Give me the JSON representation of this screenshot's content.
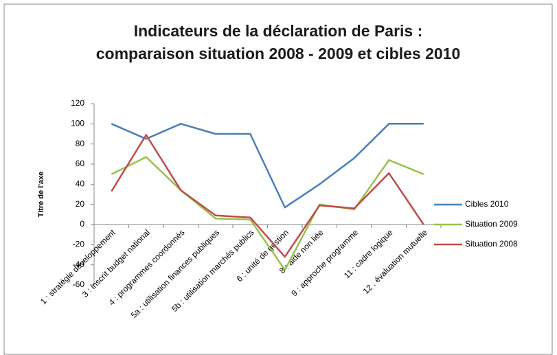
{
  "chart_data": {
    "type": "line",
    "title": [
      "Indicateurs de la déclaration de Paris :",
      "comparaison situation 2008 - 2009 et cibles 2010"
    ],
    "y_label": "Titre de l'axe",
    "categories": [
      "1 : stratégie développement",
      "3 : inscrit budget national",
      "4 : programmes coordonnés",
      "5a : utilisation finances publiques",
      "5b : utilisation marchés publics",
      "6 : unité de gestion",
      "8 : aide non liée",
      "9 : approche programme",
      "11 : cadre logique",
      "12 . évaluation mutuelle"
    ],
    "series": [
      {
        "name": "Cibles 2010",
        "color": "#4a7ebb",
        "values": [
          100,
          85,
          100,
          90,
          90,
          17,
          40,
          66,
          100,
          100
        ]
      },
      {
        "name": "Situation 2009",
        "color": "#98c14a",
        "values": [
          50,
          67,
          34,
          6,
          5,
          -45,
          20,
          15,
          64,
          50
        ]
      },
      {
        "name": "Situation 2008",
        "color": "#be4b48",
        "values": [
          33,
          89,
          34,
          9,
          7,
          -32,
          19,
          16,
          51,
          0
        ]
      }
    ],
    "ylim": [
      -60,
      120
    ],
    "yticks": [
      -60,
      -40,
      -20,
      0,
      20,
      40,
      60,
      80,
      100,
      120
    ],
    "grid": false,
    "legend": "right"
  }
}
